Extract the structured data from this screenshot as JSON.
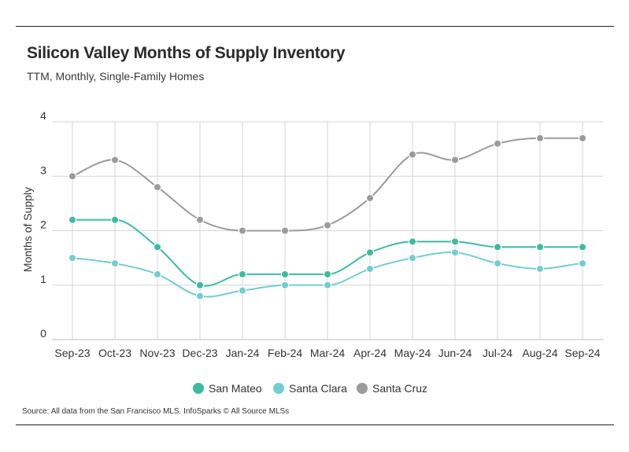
{
  "title": "Silicon Valley Months of Supply Inventory",
  "subtitle": "TTM, Monthly, Single-Family Homes",
  "source": "Source:  All data from the San Francisco MLS. InfoSparks © All Source MLSs",
  "chart_data": {
    "type": "line",
    "title": "Silicon Valley Months of Supply Inventory",
    "subtitle": "TTM, Monthly, Single-Family Homes",
    "ylabel": "Months of Supply",
    "xlabel": "",
    "ylim": [
      0,
      4
    ],
    "yticks": [
      0,
      1,
      2,
      3,
      4
    ],
    "grid": true,
    "legend": "bottom",
    "categories": [
      "Sep-23",
      "Oct-23",
      "Nov-23",
      "Dec-23",
      "Jan-24",
      "Feb-24",
      "Mar-24",
      "Apr-24",
      "May-24",
      "Jun-24",
      "Jul-24",
      "Aug-24",
      "Sep-24"
    ],
    "series": [
      {
        "name": "San Mateo",
        "color": "#3dbb9f",
        "values": [
          2.2,
          2.2,
          1.7,
          1.0,
          1.2,
          1.2,
          1.2,
          1.6,
          1.8,
          1.8,
          1.7,
          1.7,
          1.7
        ]
      },
      {
        "name": "Santa Clara",
        "color": "#74cdd0",
        "values": [
          1.5,
          1.4,
          1.2,
          0.8,
          0.9,
          1.0,
          1.0,
          1.3,
          1.5,
          1.6,
          1.4,
          1.3,
          1.4
        ]
      },
      {
        "name": "Santa Cruz",
        "color": "#9b9b9b",
        "values": [
          3.0,
          3.3,
          2.8,
          2.2,
          2.0,
          2.0,
          2.1,
          2.6,
          3.4,
          3.3,
          3.6,
          3.7,
          3.7
        ]
      }
    ]
  }
}
